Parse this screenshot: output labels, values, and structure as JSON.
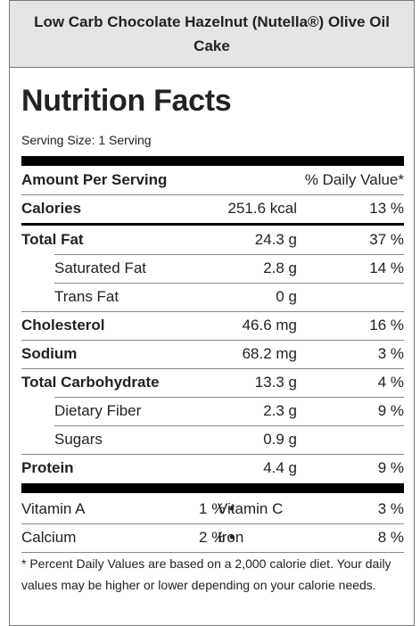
{
  "recipe_title": "Low Carb Chocolate Hazelnut (Nutella®) Olive Oil Cake",
  "heading": "Nutrition Facts",
  "serving_size": "Serving Size: 1 Serving",
  "header_row": {
    "left": "Amount Per Serving",
    "right": "% Daily Value*"
  },
  "calories": {
    "label": "Calories",
    "amount": "251.6 kcal",
    "dv": "13 %"
  },
  "nutrients": [
    {
      "label": "Total Fat",
      "amount": "24.3 g",
      "dv": "37 %"
    },
    {
      "label": "Saturated Fat",
      "amount": "2.8 g",
      "dv": "14 %"
    },
    {
      "label": "Trans Fat",
      "amount": "0 g",
      "dv": ""
    },
    {
      "label": "Cholesterol",
      "amount": "46.6 mg",
      "dv": "16 %"
    },
    {
      "label": "Sodium",
      "amount": "68.2 mg",
      "dv": "3 %"
    },
    {
      "label": "Total Carbohydrate",
      "amount": "13.3 g",
      "dv": "4 %"
    },
    {
      "label": "Dietary Fiber",
      "amount": "2.3 g",
      "dv": "9 %"
    },
    {
      "label": "Sugars",
      "amount": "0.9 g",
      "dv": ""
    },
    {
      "label": "Protein",
      "amount": "4.4 g",
      "dv": "9 %"
    }
  ],
  "vitamins": [
    {
      "left_label": "Vitamin A",
      "left_value": "1 %",
      "separator": "•",
      "right_label": "Vitamin C",
      "right_value": "3 %"
    },
    {
      "left_label": "Calcium",
      "left_value": "2 %",
      "separator": "•",
      "right_label": "Iron",
      "right_value": "8 %"
    }
  ],
  "footnote": "* Percent Daily Values are based on a 2,000 calorie diet. Your daily values may be higher or lower depending on your calorie needs."
}
